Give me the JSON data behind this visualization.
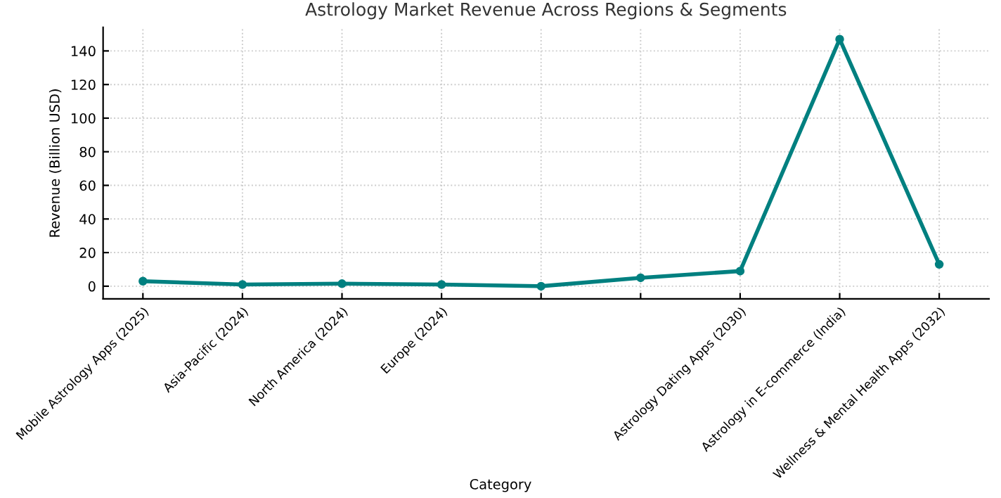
{
  "chart_data": {
    "type": "line",
    "title": "Astrology Market Revenue Across Regions & Segments",
    "xlabel": "Category",
    "ylabel": "Revenue (Billion USD)",
    "categories": [
      "Mobile Astrology Apps (2025)",
      "Asia-Pacific (2024)",
      "North America (2024)",
      "Europe (2024)",
      null,
      null,
      "Astrology Dating Apps (2030)",
      "Astrology in E-commerce (India)",
      "Wellness & Mental Health Apps (2032)"
    ],
    "series": [
      {
        "color": "#008080",
        "values": [
          3,
          1,
          1.5,
          1,
          0,
          5,
          9,
          147,
          13
        ]
      }
    ],
    "ylim": [
      -7.5,
      154
    ],
    "yticks": [
      0,
      20,
      40,
      60,
      80,
      100,
      120,
      140
    ],
    "grid": true,
    "marker": "circle",
    "line_style": "solid"
  }
}
